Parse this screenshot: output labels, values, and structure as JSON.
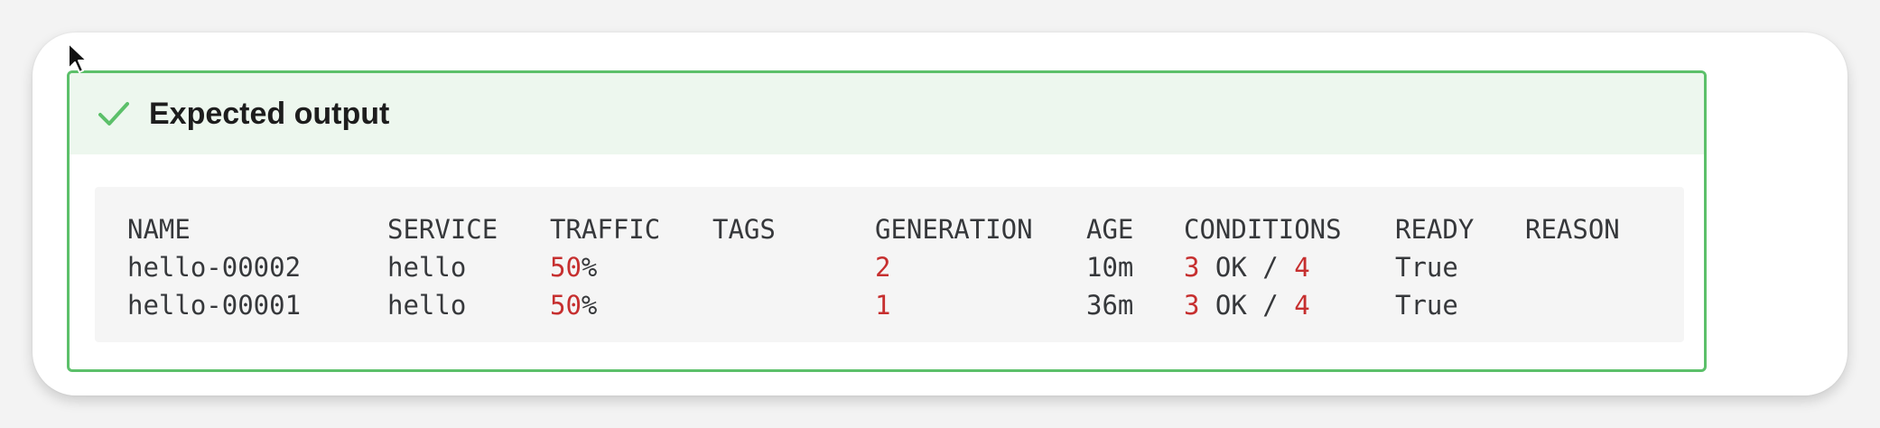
{
  "admonition": {
    "icon": "check-icon",
    "title": "Expected output",
    "accent_color": "#5cc06a",
    "header_bg": "#edf7ee"
  },
  "table": {
    "number_color": "#c62f2f",
    "headers": {
      "name": "NAME",
      "service": "SERVICE",
      "traffic": "TRAFFIC",
      "tags": "TAGS",
      "generation": "GENERATION",
      "age": "AGE",
      "conditions": "CONDITIONS",
      "ready": "READY",
      "reason": "REASON"
    },
    "rows": [
      {
        "name": "hello-00002",
        "service": "hello",
        "traffic_value": "50",
        "traffic_unit": "%",
        "tags": "",
        "generation": "2",
        "age": "10m",
        "cond_ok": "3",
        "cond_mid": " OK / ",
        "cond_total": "4",
        "ready": "True",
        "reason": ""
      },
      {
        "name": "hello-00001",
        "service": "hello",
        "traffic_value": "50",
        "traffic_unit": "%",
        "tags": "",
        "generation": "1",
        "age": "36m",
        "cond_ok": "3",
        "cond_mid": " OK / ",
        "cond_total": "4",
        "ready": "True",
        "reason": ""
      }
    ]
  },
  "cursor": {
    "icon": "mouse-pointer-icon"
  }
}
